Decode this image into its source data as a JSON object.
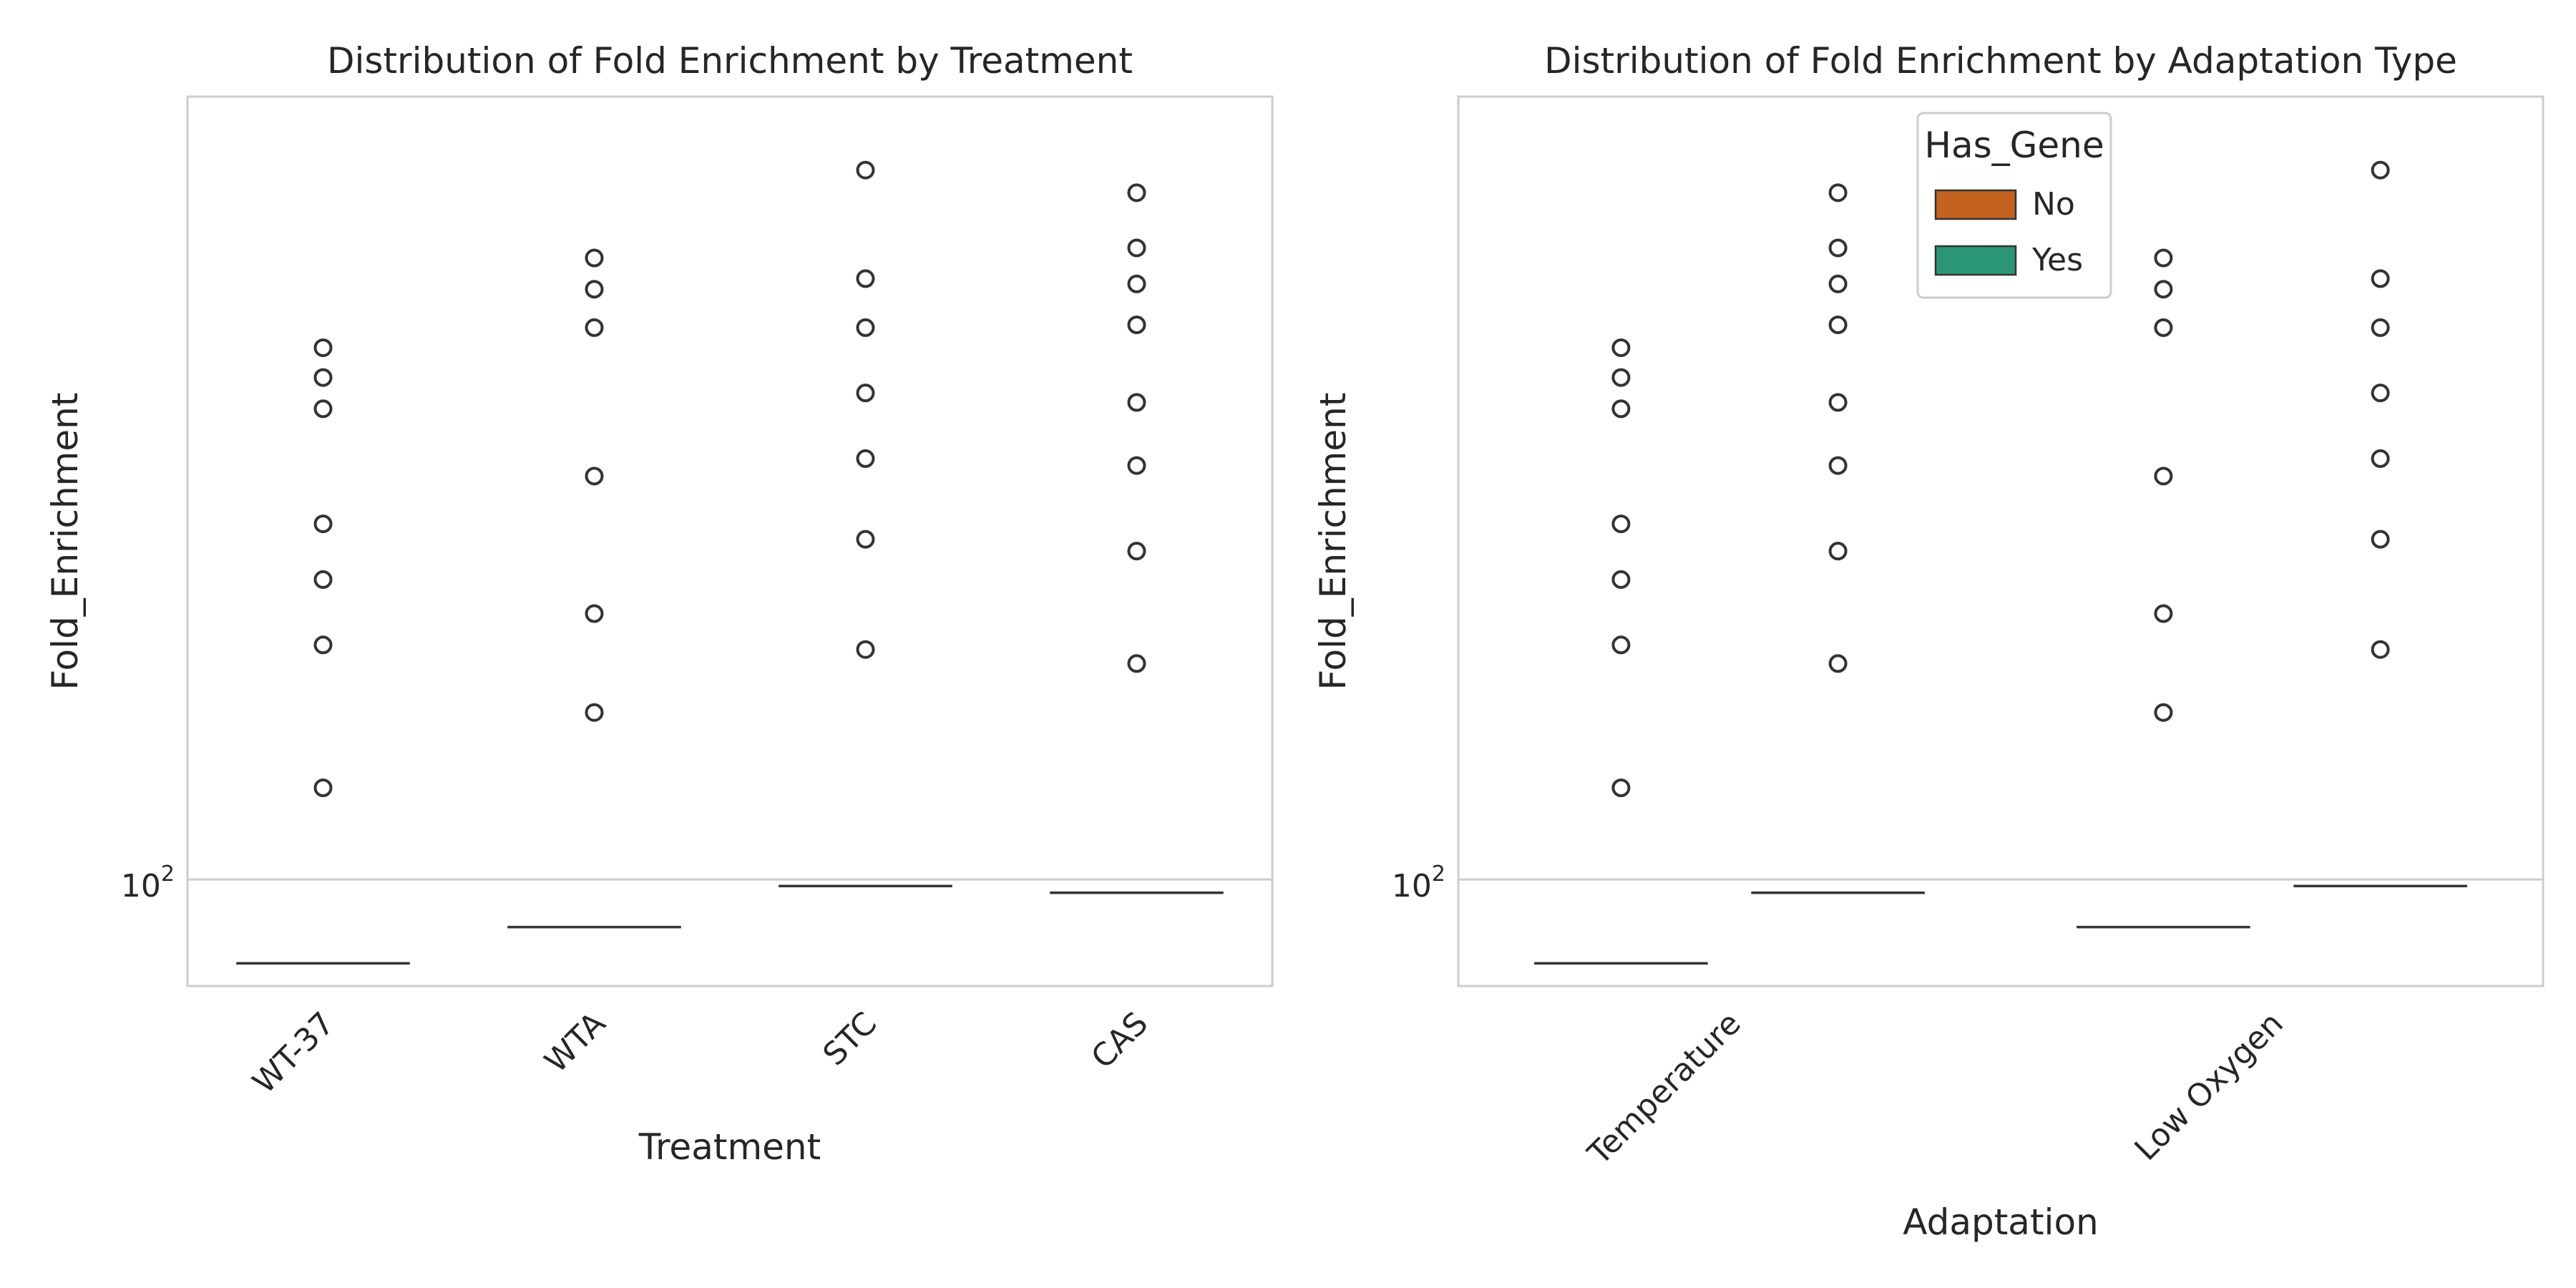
{
  "chart_data": [
    {
      "type": "box",
      "title": "Distribution of Fold Enrichment by Treatment",
      "xlabel": "Treatment",
      "ylabel": "Fold_Enrichment",
      "yscale": "log",
      "ylim": [
        85,
        330
      ],
      "yticks": [
        {
          "value": 100,
          "base": "10",
          "exp": "2"
        }
      ],
      "grid": "y",
      "categories": [
        "WT-37",
        "WTA",
        "STC",
        "CAS"
      ],
      "groups": [
        {
          "category": "WT-37",
          "median": 88,
          "outliers": [
            115,
            143,
            158,
            172,
            205,
            215,
            225
          ]
        },
        {
          "category": "WTA",
          "median": 93,
          "outliers": [
            129,
            150,
            185,
            232,
            246,
            258
          ]
        },
        {
          "category": "STC",
          "median": 99,
          "outliers": [
            142,
            168,
            190,
            210,
            232,
            250,
            295
          ]
        },
        {
          "category": "CAS",
          "median": 98,
          "outliers": [
            139,
            165,
            188,
            207,
            233,
            248,
            262,
            285
          ]
        }
      ]
    },
    {
      "type": "box",
      "title": "Distribution of Fold Enrichment by Adaptation Type",
      "xlabel": "Adaptation",
      "ylabel": "Fold_Enrichment",
      "yscale": "log",
      "ylim": [
        85,
        330
      ],
      "yticks": [
        {
          "value": 100,
          "base": "10",
          "exp": "2"
        }
      ],
      "grid": "y",
      "categories": [
        "Temperature",
        "Low Oxygen"
      ],
      "legend": {
        "title": "Has_Gene",
        "placement": "top-center",
        "entries": [
          {
            "label": "No",
            "color": "#c4621f"
          },
          {
            "label": "Yes",
            "color": "#2a9676"
          }
        ]
      },
      "groups": [
        {
          "category": "Temperature",
          "hue": "No",
          "median": 88,
          "outliers": [
            115,
            143,
            158,
            172,
            205,
            215,
            225
          ]
        },
        {
          "category": "Temperature",
          "hue": "Yes",
          "median": 98,
          "outliers": [
            139,
            165,
            188,
            207,
            233,
            248,
            262,
            285
          ]
        },
        {
          "category": "Low Oxygen",
          "hue": "No",
          "median": 93,
          "outliers": [
            129,
            150,
            185,
            232,
            246,
            258
          ]
        },
        {
          "category": "Low Oxygen",
          "hue": "Yes",
          "median": 99,
          "outliers": [
            142,
            168,
            190,
            210,
            232,
            250,
            295
          ]
        }
      ]
    }
  ]
}
